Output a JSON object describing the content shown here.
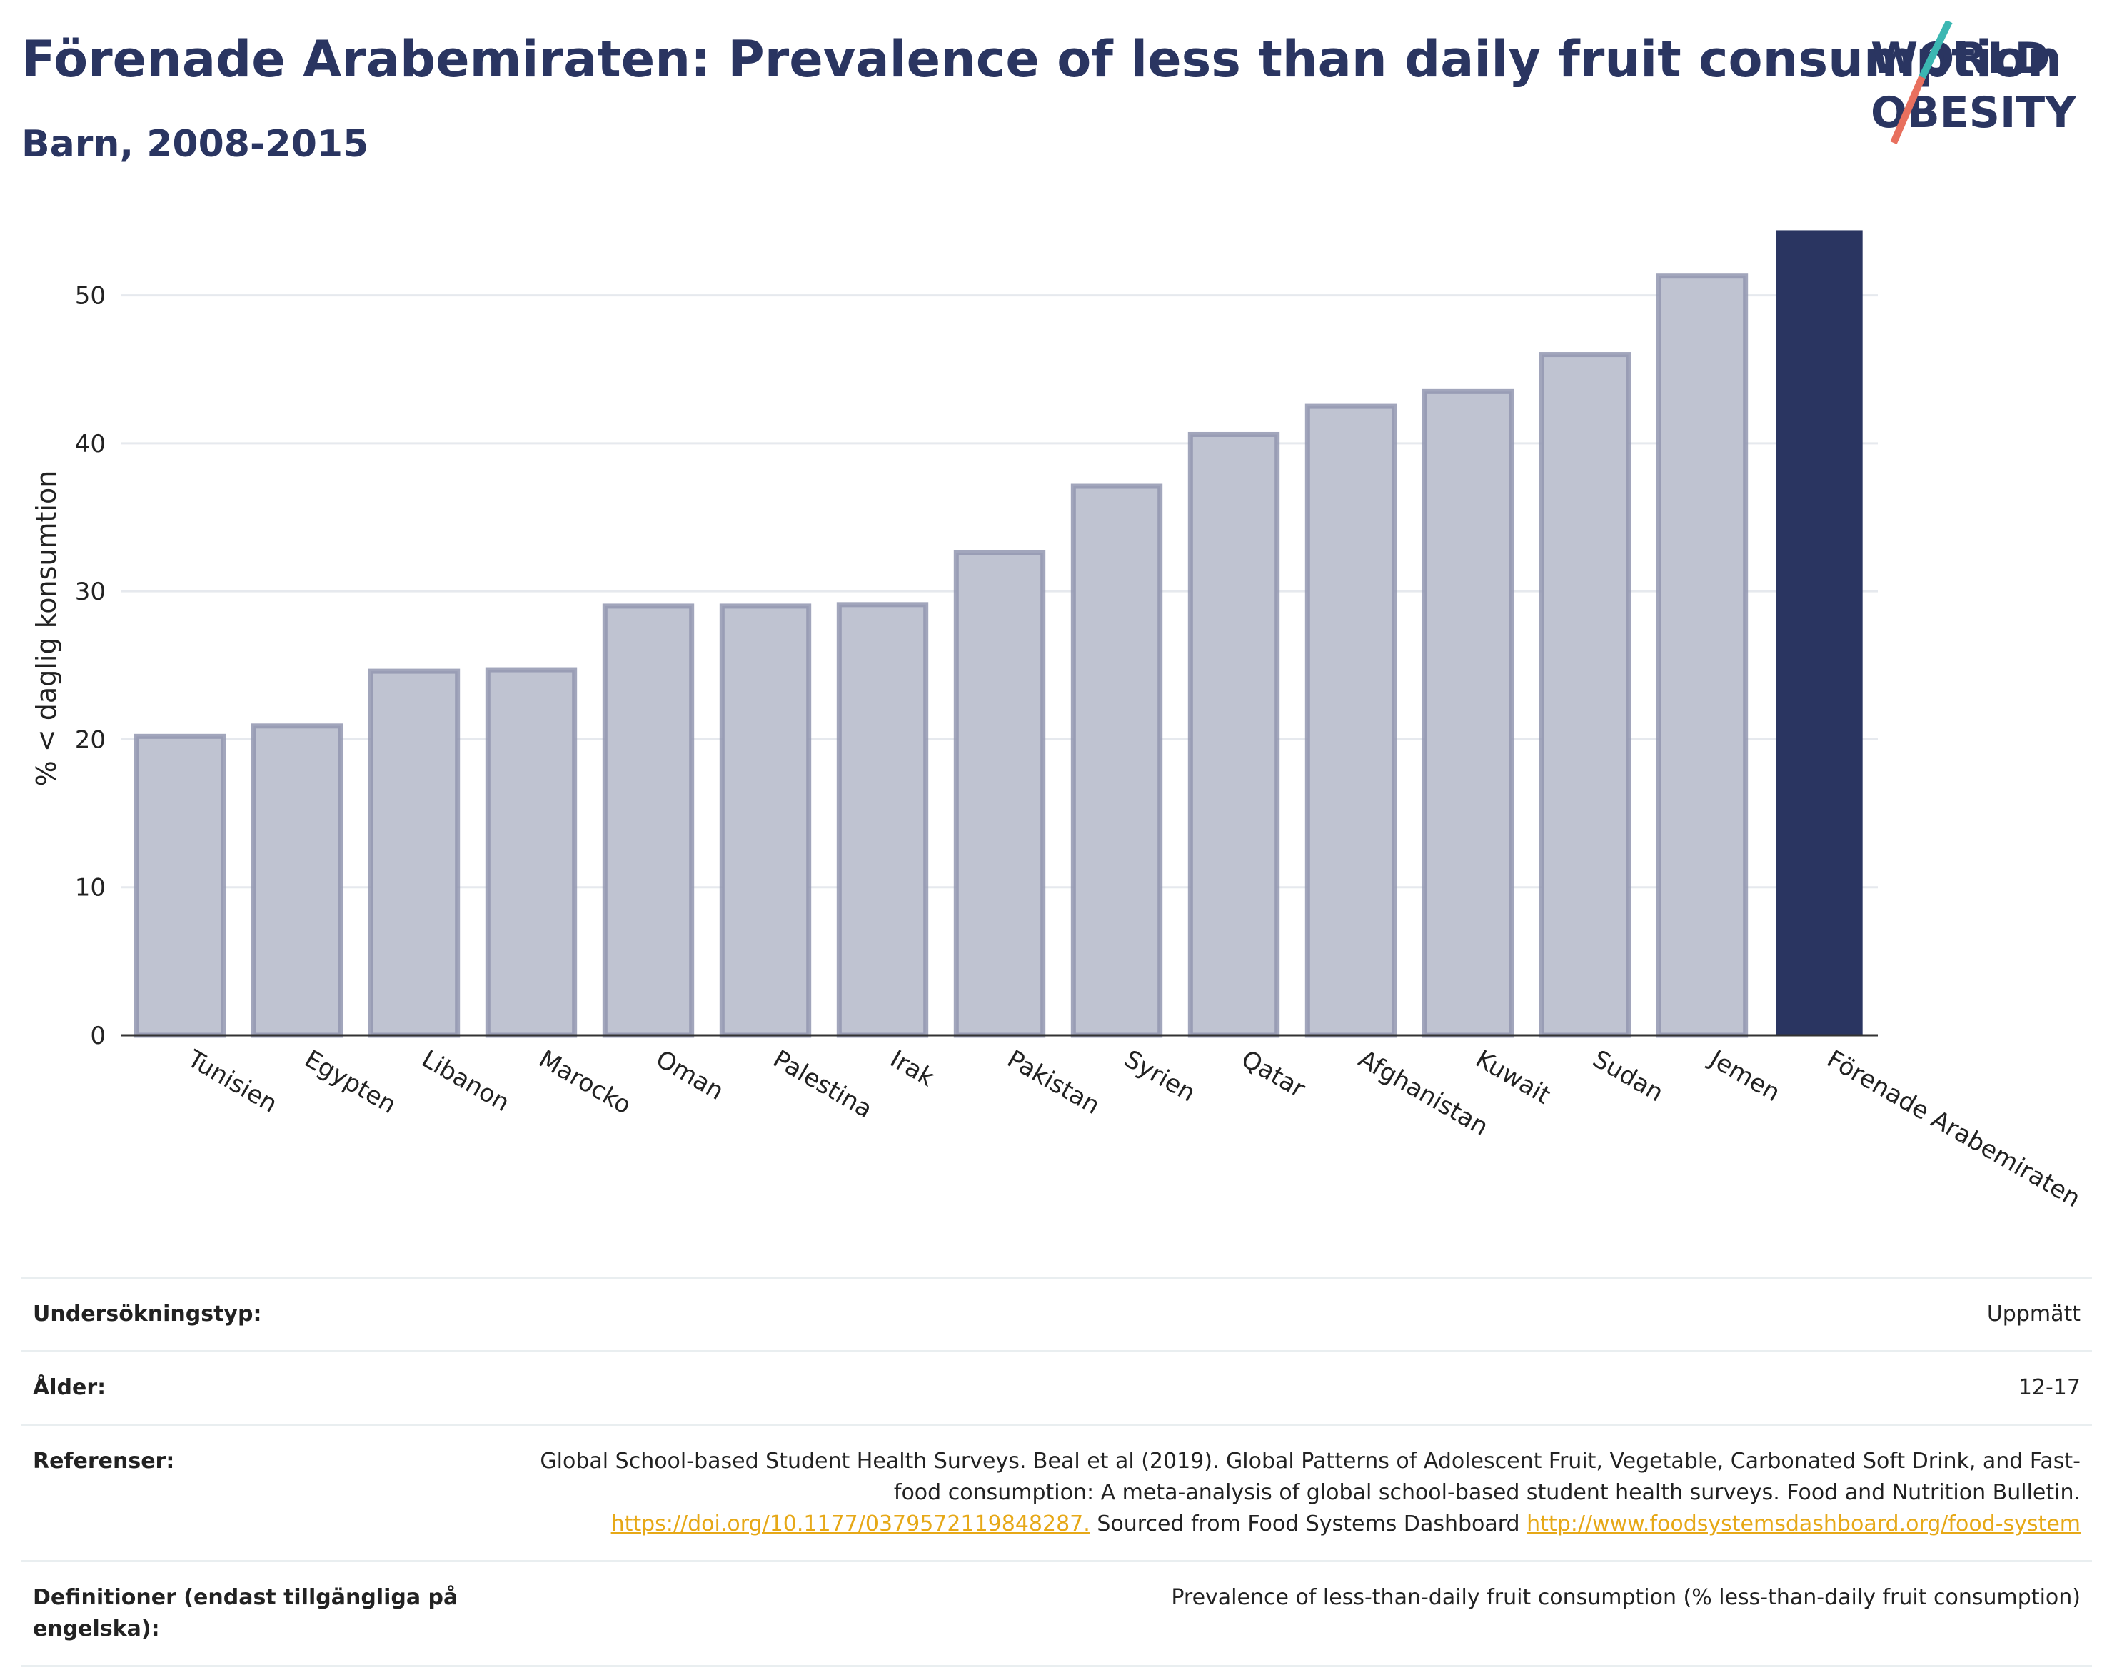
{
  "header": {
    "title": "Förenade Arabemiraten: Prevalence of less than daily fruit consumption",
    "subtitle": "Barn, 2008-2015"
  },
  "logo": {
    "line1": "WORLD",
    "line2": "OBESITY",
    "colors": {
      "text": "#2a3561",
      "slash_top": "#3bb7b2",
      "slash_bottom": "#e8705e"
    }
  },
  "colors": {
    "highlight_bar": "#2a3561",
    "other_bar_fill": "#bfc3d1",
    "other_bar_stroke": "#9297b0",
    "grid": "#e6e9ee"
  },
  "chart_data": {
    "type": "bar",
    "title": "Förenade Arabemiraten: Prevalence of less than daily fruit consumption",
    "subtitle": "Barn, 2008-2015",
    "xlabel": "",
    "ylabel": "% < daglig konsumtion",
    "ylim": [
      0,
      55
    ],
    "yticks": [
      0,
      10,
      20,
      30,
      40,
      50
    ],
    "grid": true,
    "highlight": "Förenade Arabemiraten",
    "categories": [
      "Tunisien",
      "Egypten",
      "Libanon",
      "Marocko",
      "Oman",
      "Palestina",
      "Irak",
      "Pakistan",
      "Syrien",
      "Qatar",
      "Afghanistan",
      "Kuwait",
      "Sudan",
      "Jemen",
      "Förenade Arabemiraten"
    ],
    "values": [
      20.2,
      20.9,
      24.6,
      24.7,
      29.0,
      29.0,
      29.1,
      32.6,
      37.1,
      40.6,
      42.5,
      43.5,
      46.0,
      51.3,
      54.4
    ]
  },
  "meta": {
    "survey_type_label": "Undersökningstyp:",
    "survey_type_value": "Uppmätt",
    "age_label": "Ålder:",
    "age_value": "12-17",
    "references_label": "Referenser:",
    "references_text_1": "Global School-based Student Health Surveys. Beal et al (2019). Global Patterns of Adolescent Fruit, Vegetable, Carbonated Soft Drink, and Fast-food consumption: A meta-analysis of global school-based student health surveys. Food and Nutrition Bulletin.",
    "references_link_1": "https://doi.org/10.1177/0379572119848287.",
    "references_text_2": "Sourced from Food Systems Dashboard",
    "references_link_2": "http://www.foodsystemsdashboard.org/food-system",
    "definitions_label": "Definitioner (endast tillgängliga på engelska):",
    "definitions_value": "Prevalence of less-than-daily fruit consumption (% less-than-daily fruit consumption)"
  }
}
